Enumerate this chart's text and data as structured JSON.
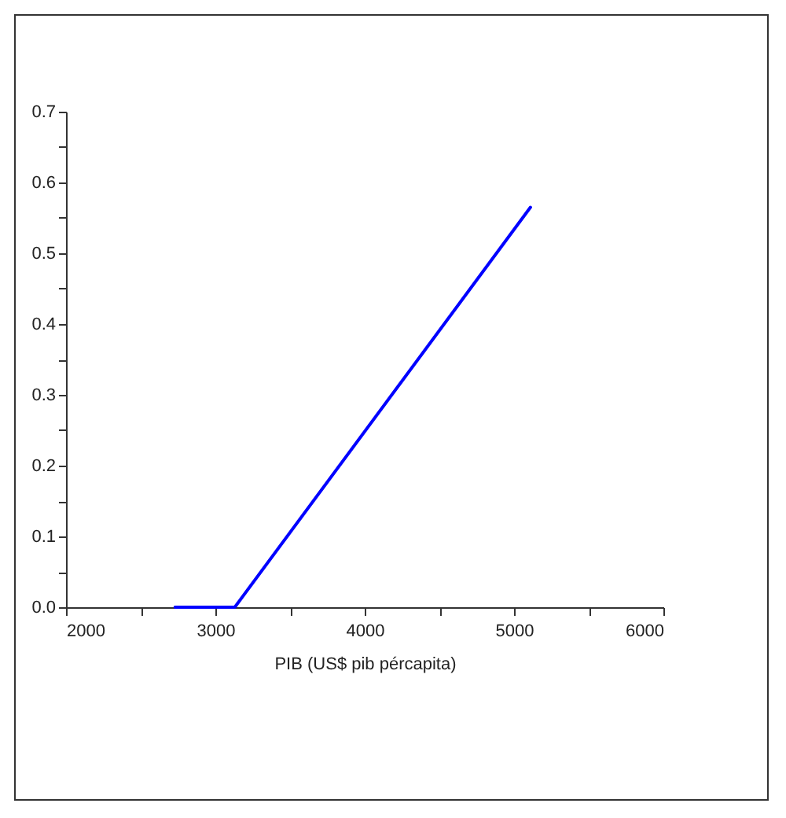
{
  "chart_data": {
    "type": "line",
    "xlabel": "PIB (US$ pib pércapita)",
    "x": [
      2730,
      3130,
      5110
    ],
    "series": [
      {
        "color": "#0000ff",
        "values": [
          0,
          0,
          0.565
        ]
      }
    ],
    "xlim": [
      2000,
      6000
    ],
    "xticks": [
      2000,
      {
        "value": 2500,
        "label": null
      },
      3000,
      {
        "value": 3500,
        "label": null
      },
      4000,
      {
        "value": 4500,
        "label": null
      },
      5000,
      {
        "value": 5500,
        "label": null
      },
      6000
    ],
    "ylim": [
      0,
      0.7
    ],
    "yticks": [
      {
        "value": 0,
        "label": "0.0"
      },
      {
        "value": 0.05,
        "label": null
      },
      0.1,
      {
        "value": 0.15,
        "label": null
      },
      0.2,
      {
        "value": 0.25,
        "label": null
      },
      0.3,
      {
        "value": 0.35,
        "label": null
      },
      0.4,
      {
        "value": 0.45,
        "label": null
      },
      0.5,
      {
        "value": 0.55,
        "label": null
      },
      0.6,
      {
        "value": 0.65,
        "label": null
      },
      0.7
    ],
    "grid": false,
    "legend": false,
    "marker": "none",
    "line_style": "solid"
  }
}
